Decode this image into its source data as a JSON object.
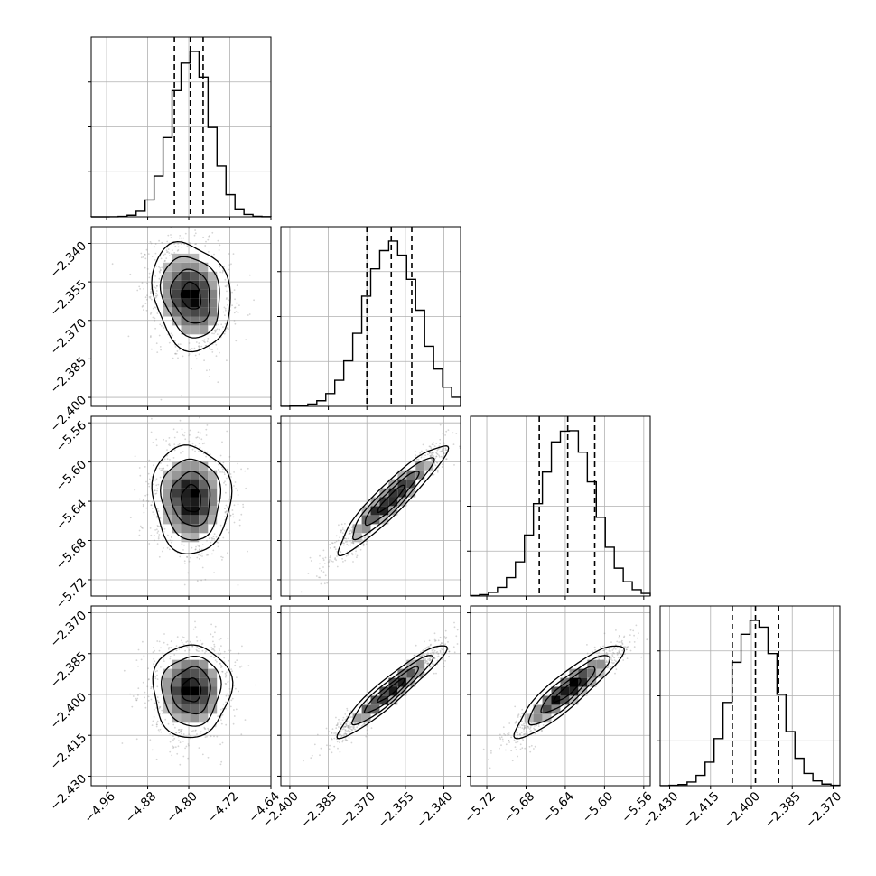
{
  "chart_data": {
    "type": "corner",
    "grid": true,
    "params": [
      {
        "mean": -4.795,
        "sd": 0.038,
        "range": [
          -4.99,
          -4.64
        ],
        "ticks": [
          "−4.96",
          "−4.88",
          "−4.80",
          "−4.72",
          "−4.64"
        ],
        "tick_values": [
          -4.96,
          -4.88,
          -4.8,
          -4.72,
          -4.64
        ],
        "quantiles": [
          -4.828,
          -4.797,
          -4.772
        ]
      },
      {
        "mean": -2.3605,
        "sd": 0.0105,
        "range": [
          -2.4035,
          -2.3335
        ],
        "ticks": [
          "−2.400",
          "−2.385",
          "−2.370",
          "−2.355",
          "−2.340"
        ],
        "tick_values": [
          -2.4,
          -2.385,
          -2.37,
          -2.355,
          -2.34
        ],
        "quantiles": [
          -2.37,
          -2.3605,
          -2.3525
        ]
      },
      {
        "mean": -5.6375,
        "sd": 0.0275,
        "range": [
          -5.7366,
          -5.5534
        ],
        "ticks": [
          "−5.72",
          "−5.68",
          "−5.64",
          "−5.60",
          "−5.56"
        ],
        "tick_values": [
          -5.72,
          -5.68,
          -5.64,
          -5.6,
          -5.56
        ],
        "quantiles": [
          -5.6665,
          -5.6375,
          -5.61
        ]
      },
      {
        "mean": -2.3985,
        "sd": 0.0085,
        "range": [
          -2.4335,
          -2.3675
        ],
        "ticks": [
          "−2.430",
          "−2.415",
          "−2.400",
          "−2.385",
          "−2.370"
        ],
        "tick_values": [
          -2.43,
          -2.415,
          -2.4,
          -2.385,
          -2.37
        ],
        "quantiles": [
          -2.407,
          -2.3985,
          -2.39
        ]
      }
    ],
    "correlations": [
      {
        "row": 1,
        "col": 0,
        "rho": -0.18
      },
      {
        "row": 2,
        "col": 0,
        "rho": -0.05
      },
      {
        "row": 2,
        "col": 1,
        "rho": 0.93
      },
      {
        "row": 3,
        "col": 0,
        "rho": 0.02
      },
      {
        "row": 3,
        "col": 1,
        "rho": 0.94
      },
      {
        "row": 3,
        "col": 2,
        "rho": 0.9
      }
    ],
    "contour_levels_sigma": [
      0.5,
      1.0,
      1.5,
      2.0
    ],
    "histogram_bins": 20,
    "colors": {
      "line": "#000000",
      "grid": "#b0b0b0",
      "points": "#888888"
    }
  }
}
